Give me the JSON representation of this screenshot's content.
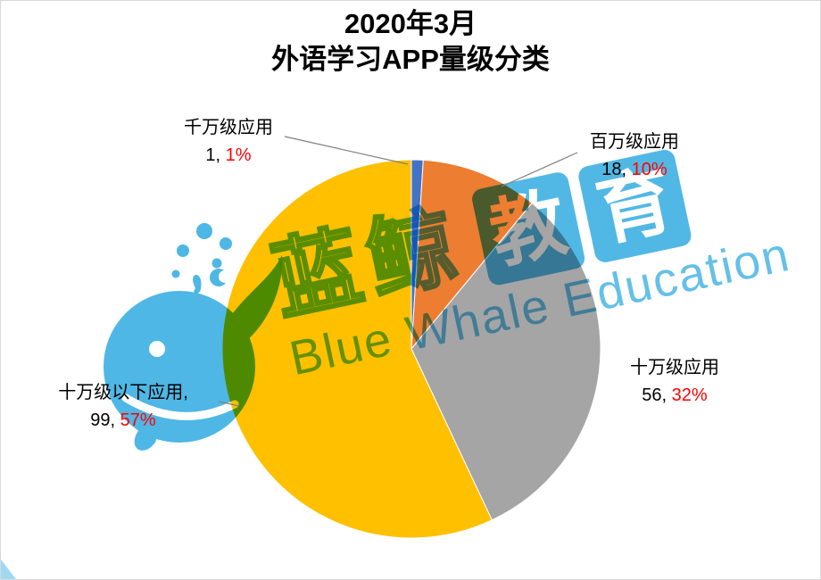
{
  "title": {
    "line1": "2020年3月",
    "line2": "外语学习APP量级分类"
  },
  "chart_data": {
    "type": "pie",
    "title": "2020年3月 外语学习APP量级分类",
    "direction": "clockwise",
    "start_angle_deg": 0,
    "legend_position": "none",
    "slices": [
      {
        "label": "千万级应用",
        "value": 1,
        "percent": 1,
        "color": "#4472C4"
      },
      {
        "label": "百万级应用",
        "value": 18,
        "percent": 10,
        "color": "#ED7D31"
      },
      {
        "label": "十万级应用",
        "value": 56,
        "percent": 32,
        "color": "#A5A5A5"
      },
      {
        "label": "十万级以下应用",
        "value": 99,
        "percent": 57,
        "color": "#FFC000"
      }
    ]
  },
  "callouts": {
    "qianwan": {
      "name": "千万级应用",
      "value_part": "1, ",
      "percent_part": "1%"
    },
    "baiwan": {
      "name": "百万级应用",
      "value_part": "18, ",
      "percent_part": "10%"
    },
    "shiwan": {
      "name": "十万级应用",
      "value_part": "56, ",
      "percent_part": "32%"
    },
    "shiwan_below": {
      "name": "十万级以下应用, ",
      "value_part": "99, ",
      "percent_part": "57%"
    }
  },
  "watermark": {
    "cn_outline": "蓝鲸",
    "cn_block_chars": [
      "教",
      "育"
    ],
    "en_text": "Blue Whale Education",
    "color": "#3FB1E3"
  },
  "colors": {
    "percent_red": "#FF0000",
    "label_black": "#000000",
    "leader_line": "#808080"
  }
}
